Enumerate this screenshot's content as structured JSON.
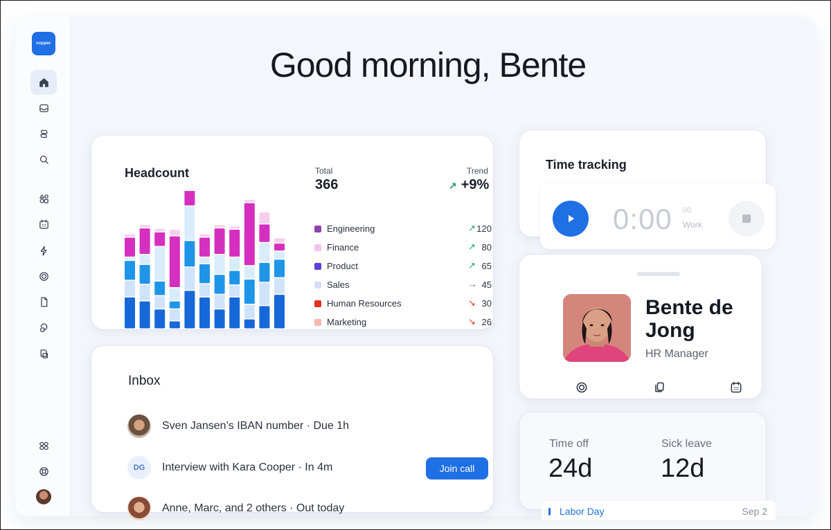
{
  "app": {
    "logo_text": "copper"
  },
  "greeting": "Good morning, Bente",
  "sidebar": {
    "items": [
      {
        "icon": "home-icon",
        "active": true
      },
      {
        "icon": "inbox-icon"
      },
      {
        "icon": "people-icon"
      },
      {
        "icon": "search-icon"
      },
      {
        "icon": "apps-icon"
      },
      {
        "icon": "calendar-icon"
      },
      {
        "icon": "bolt-icon"
      },
      {
        "icon": "target-icon"
      },
      {
        "icon": "document-icon"
      },
      {
        "icon": "coins-icon"
      },
      {
        "icon": "files-icon"
      },
      {
        "icon": "settings-icon"
      },
      {
        "icon": "help-icon"
      }
    ]
  },
  "headcount": {
    "title": "Headcount",
    "total_label": "Total",
    "total_value": "366",
    "trend_label": "Trend",
    "trend_value": "+9%",
    "legend": [
      {
        "name": "Engineering",
        "value": "120",
        "trend": "up",
        "color": "#8e44ad"
      },
      {
        "name": "Finance",
        "value": "80",
        "trend": "up",
        "color": "#f3c4ec"
      },
      {
        "name": "Product",
        "value": "65",
        "trend": "up",
        "color": "#5b3fd6"
      },
      {
        "name": "Sales",
        "value": "45",
        "trend": "flat",
        "color": "#d6dcf5"
      },
      {
        "name": "Human Resources",
        "value": "30",
        "trend": "down",
        "color": "#e0321f"
      },
      {
        "name": "Marketing",
        "value": "26",
        "trend": "down",
        "color": "#f7b7b0"
      }
    ]
  },
  "chart_data": {
    "type": "bar",
    "stacked": true,
    "series": [
      {
        "color": "#1668d9",
        "values": [
          48,
          42,
          30,
          12,
          58,
          48,
          30,
          48,
          15,
          35,
          52
        ]
      },
      {
        "color": "#cfe3fb",
        "values": [
          25,
          25,
          20,
          18,
          35,
          20,
          22,
          18,
          22,
          35,
          25
        ]
      },
      {
        "color": "#1f95e8",
        "values": [
          30,
          30,
          22,
          12,
          40,
          30,
          30,
          22,
          38,
          30,
          28
        ]
      },
      {
        "color": "#d8ecfc",
        "values": [
          5,
          15,
          52,
          20,
          52,
          10,
          30,
          20,
          20,
          30,
          12
        ]
      },
      {
        "color": "#d52fbf",
        "values": [
          30,
          40,
          22,
          78,
          28,
          30,
          40,
          42,
          95,
          28,
          12
        ]
      },
      {
        "color": "#f6cfee",
        "values": [
          5,
          5,
          5,
          10,
          15,
          5,
          5,
          5,
          5,
          18,
          8
        ]
      }
    ]
  },
  "time_tracking": {
    "title": "Time tracking",
    "timer": "0:00",
    "seconds": "00",
    "status": "Work"
  },
  "profile": {
    "name": "Bente de Jong",
    "role": "HR Manager"
  },
  "time_off": {
    "items": [
      {
        "label": "Time off",
        "value": "24d"
      },
      {
        "label": "Sick leave",
        "value": "12d"
      }
    ],
    "holiday": {
      "name": "Labor Day",
      "date": "Sep 2"
    }
  },
  "inbox": {
    "title": "Inbox",
    "items": [
      {
        "text": "Sven Jansen’s IBAN number · Due 1h"
      },
      {
        "text": "Interview with Kara Cooper · In 4m",
        "initials": "DG",
        "action": "Join call"
      },
      {
        "text": "Anne, Marc, and 2 others · Out today"
      }
    ]
  }
}
